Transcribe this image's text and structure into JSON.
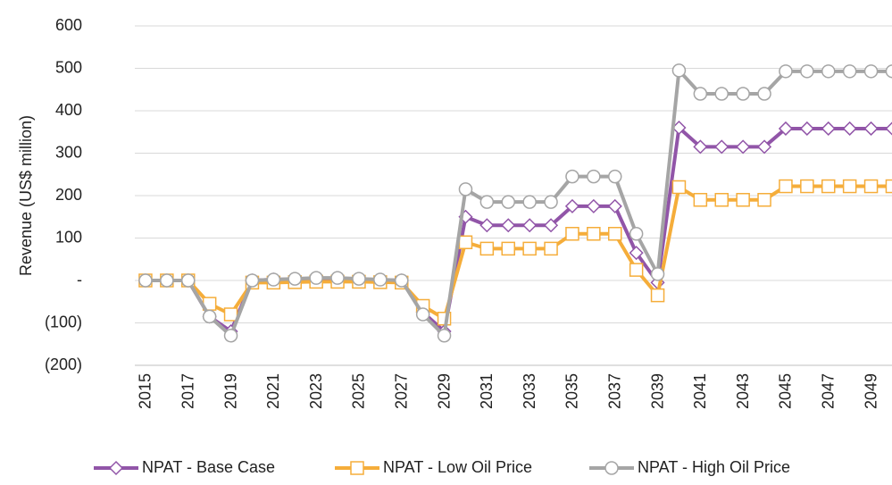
{
  "chart_data": {
    "type": "line",
    "y_label": "Revenue (US$ million)",
    "categories": [
      "2015",
      null,
      "2017",
      null,
      "2019",
      null,
      "2021",
      null,
      "2023",
      null,
      "2025",
      null,
      "2027",
      null,
      "2029",
      null,
      "2031",
      null,
      "2033",
      null,
      "2035",
      null,
      "2037",
      null,
      "2039",
      null,
      "2041",
      null,
      "2043",
      null,
      "2045",
      null,
      "2047",
      null,
      "2049",
      null
    ],
    "series": [
      {
        "name": "NPAT - Base Case",
        "color": "#9155a8",
        "marker": "diamond",
        "values": [
          0,
          0,
          0,
          -85,
          -120,
          0,
          2,
          3,
          4,
          4,
          3,
          1,
          0,
          -75,
          -120,
          150,
          130,
          130,
          130,
          130,
          175,
          175,
          175,
          65,
          -5,
          360,
          315,
          315,
          315,
          315,
          358,
          358,
          358,
          358,
          358,
          358
        ]
      },
      {
        "name": "NPAT - Low Oil Price",
        "color": "#f5ad3a",
        "marker": "square",
        "values": [
          0,
          0,
          0,
          -55,
          -80,
          -5,
          -5,
          -4,
          -3,
          -3,
          -3,
          -4,
          -5,
          -60,
          -90,
          90,
          75,
          75,
          75,
          75,
          110,
          110,
          110,
          25,
          -35,
          220,
          190,
          190,
          190,
          190,
          222,
          222,
          222,
          222,
          222,
          222
        ]
      },
      {
        "name": "NPAT - High Oil Price",
        "color": "#a5a5a5",
        "marker": "circle",
        "values": [
          0,
          0,
          0,
          -85,
          -130,
          0,
          2,
          4,
          6,
          6,
          4,
          2,
          0,
          -80,
          -130,
          215,
          185,
          185,
          185,
          185,
          245,
          245,
          245,
          110,
          15,
          495,
          440,
          440,
          440,
          440,
          493,
          493,
          493,
          493,
          493,
          493
        ]
      }
    ],
    "ylim": [
      -200,
      600
    ],
    "yticks": [
      {
        "value": -200,
        "label": "(200)"
      },
      {
        "value": -100,
        "label": "(100)"
      },
      {
        "value": 0,
        "label": "-"
      },
      100,
      200,
      300,
      400,
      500,
      600
    ],
    "grid": true,
    "legend": "bottom"
  }
}
